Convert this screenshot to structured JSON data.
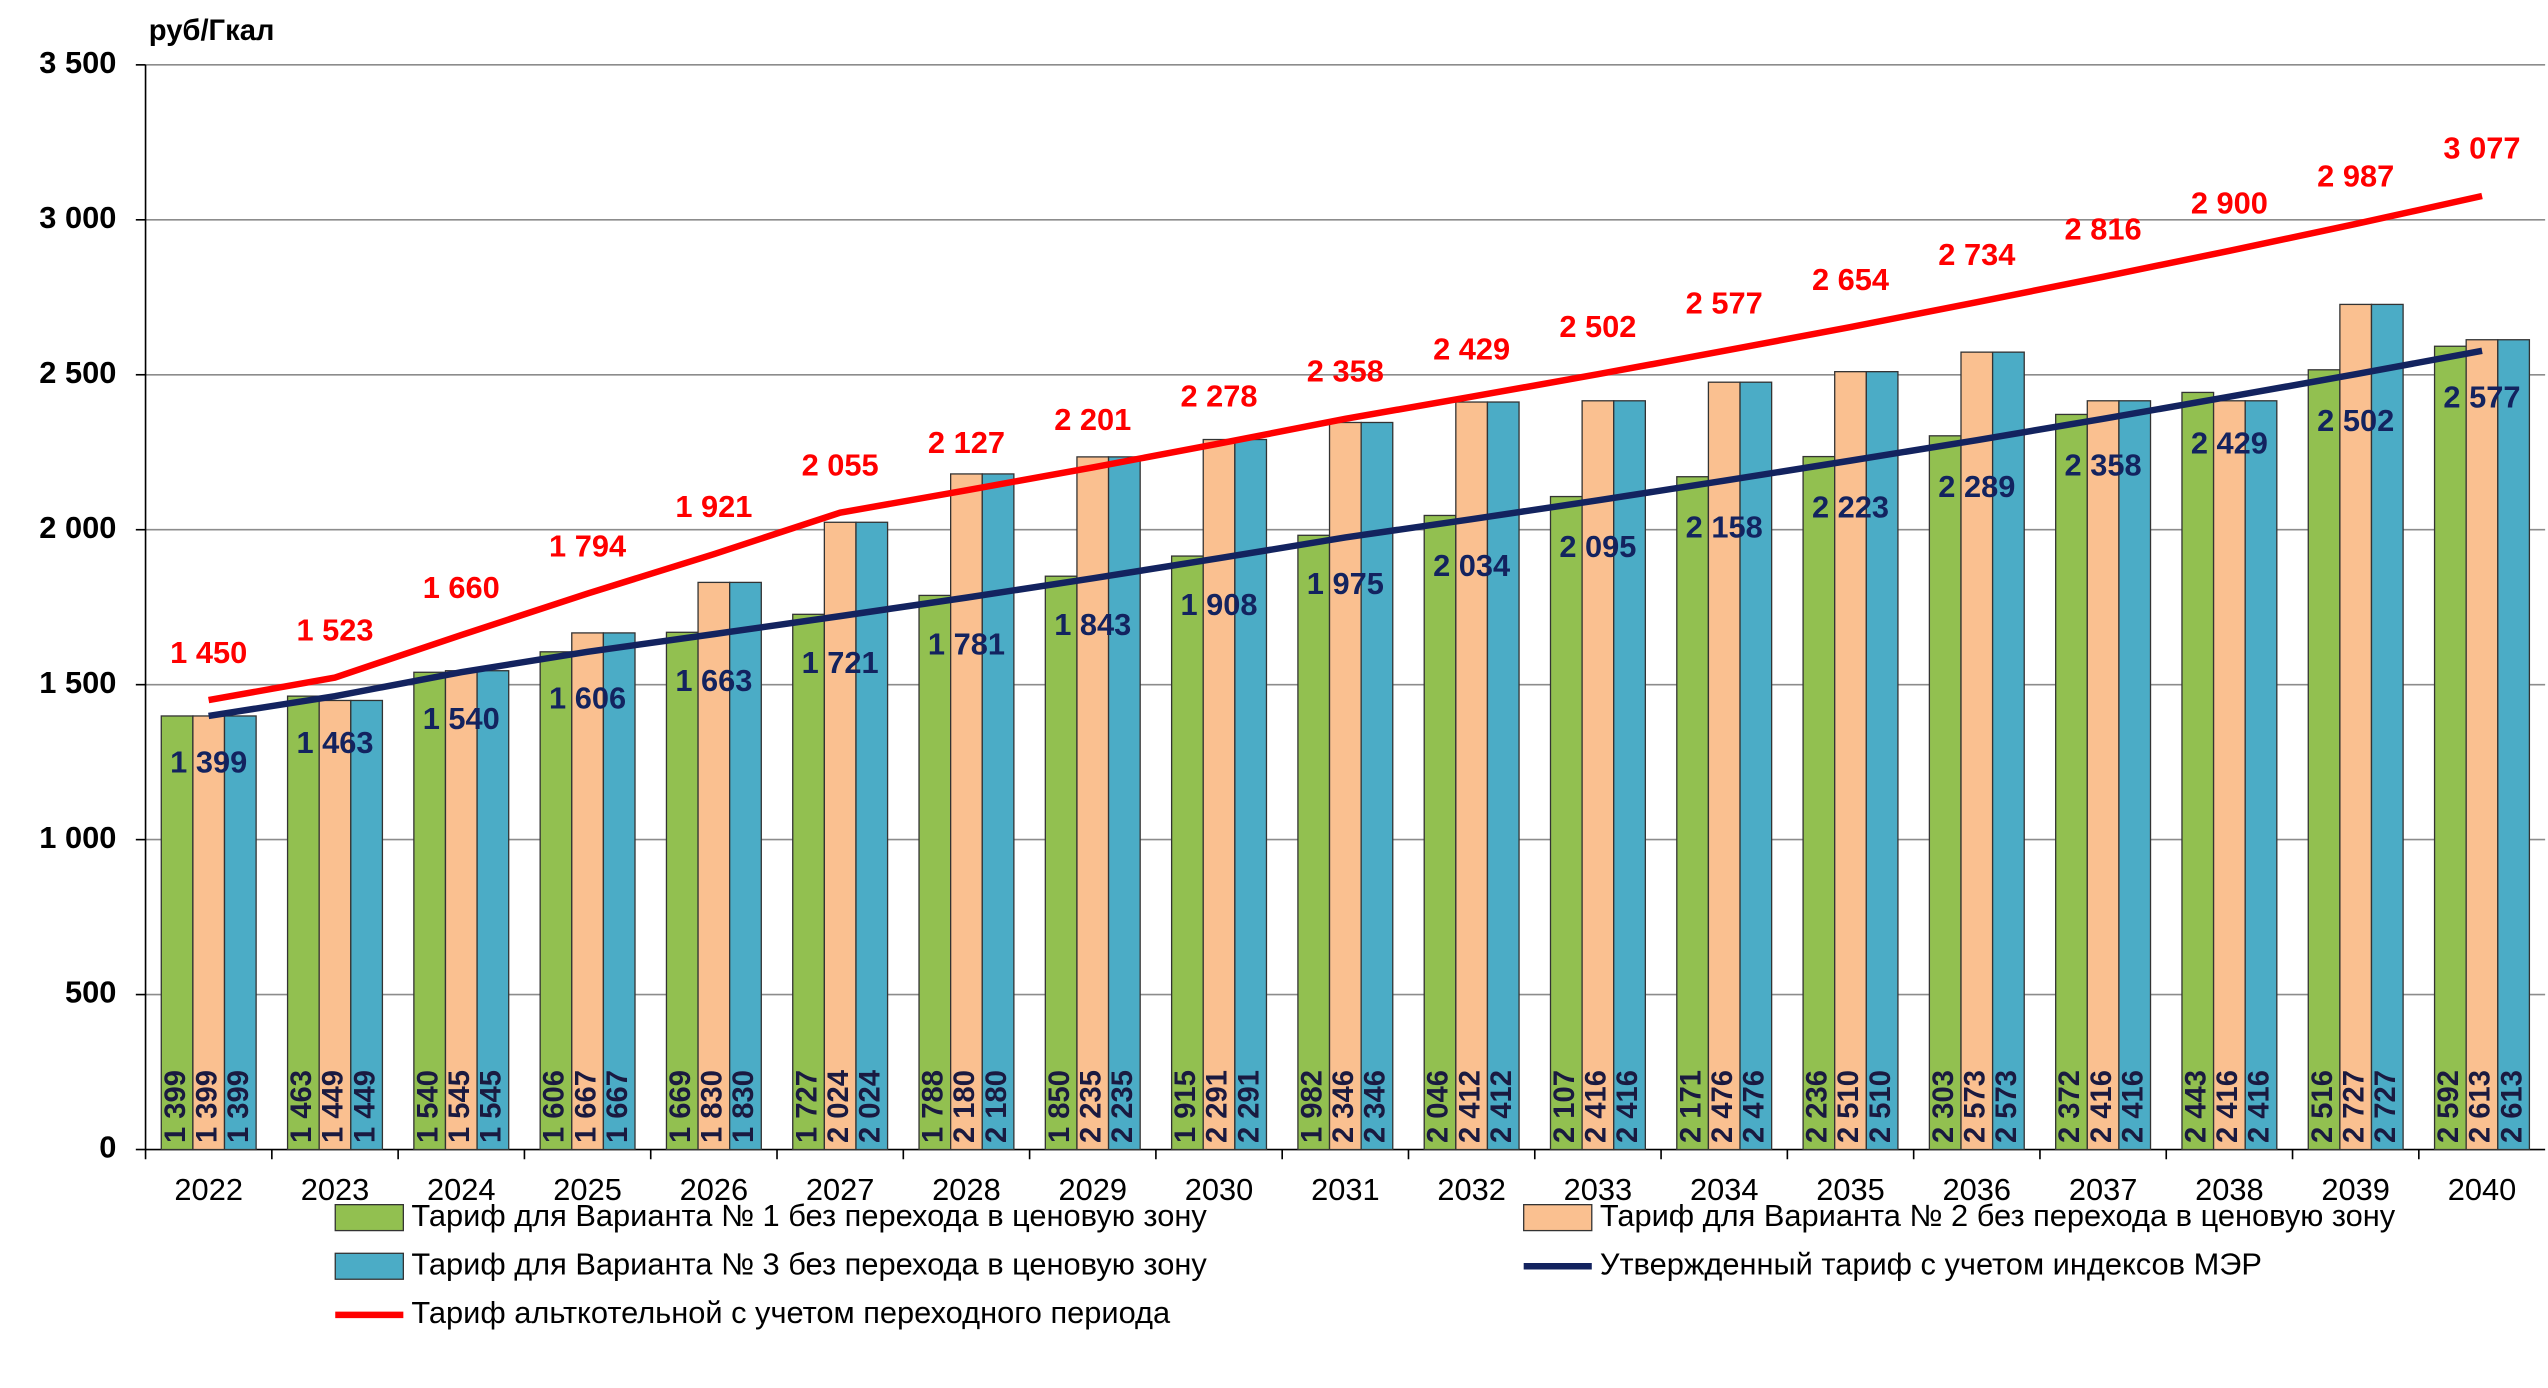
{
  "chart_data": {
    "type": "bar",
    "y_label": "руб/Гкал",
    "categories": [
      "2022",
      "2023",
      "2024",
      "2025",
      "2026",
      "2027",
      "2028",
      "2029",
      "2030",
      "2031",
      "2032",
      "2033",
      "2034",
      "2035",
      "2036",
      "2037",
      "2038",
      "2039",
      "2040"
    ],
    "ylim": [
      0,
      3500
    ],
    "yticks": [
      0,
      500,
      {
        "value": 1000,
        "label": "1 000"
      },
      {
        "value": 1500,
        "label": "1 500"
      },
      {
        "value": 2000,
        "label": "2 000"
      },
      {
        "value": 2500,
        "label": "2 500"
      },
      {
        "value": 3000,
        "label": "3 000"
      },
      {
        "value": 3500,
        "label": "3 500"
      }
    ],
    "grid": true,
    "legend": "bottom",
    "series": [
      {
        "name": "Тариф для  Варианта № 1 без перехода в ценовую зону",
        "type": "bar",
        "color": "#92c050",
        "values": [
          1399,
          1463,
          1540,
          1606,
          1669,
          1727,
          1788,
          1850,
          1915,
          1982,
          2046,
          2107,
          2171,
          2236,
          2303,
          2372,
          2443,
          2516,
          2592
        ],
        "value_labels": [
          "1 399",
          "1 463",
          "1 540",
          "1 606",
          "1 669",
          "1 727",
          "1 788",
          "1 850",
          "1 915",
          "1 982",
          "2 046",
          "2 107",
          "2 171",
          "2 236",
          "2 303",
          "2 372",
          "2 443",
          "2 516",
          "2 592"
        ]
      },
      {
        "name": "Тариф для  Варианта № 2 без перехода в ценовую зону",
        "type": "bar",
        "color": "#fac090",
        "values": [
          1399,
          1449,
          1545,
          1667,
          1830,
          2024,
          2180,
          2235,
          2291,
          2346,
          2412,
          2416,
          2476,
          2510,
          2573,
          2416,
          2416,
          2727,
          2613
        ],
        "value_labels": [
          "1 399",
          "1 449",
          "1 545",
          "1 667",
          "1 830",
          "2 024",
          "2 180",
          "2 235",
          "2 291",
          "2 346",
          "2 412",
          "2 416",
          "2 476",
          "2 510",
          "2 573",
          "2 416",
          "2 416",
          "2 727",
          "2 613"
        ]
      },
      {
        "name": "Тариф для  Варианта № 3 без перехода в ценовую зону",
        "type": "bar",
        "color": "#4bacc6",
        "values": [
          1399,
          1449,
          1545,
          1667,
          1830,
          2024,
          2180,
          2235,
          2291,
          2346,
          2412,
          2416,
          2476,
          2510,
          2573,
          2416,
          2416,
          2727,
          2613
        ],
        "value_labels": [
          "1 399",
          "1 449",
          "1 545",
          "1 667",
          "1 830",
          "2 024",
          "2 180",
          "2 235",
          "2 291",
          "2 346",
          "2 412",
          "2 416",
          "2 476",
          "2 510",
          "2 573",
          "2 416",
          "2 416",
          "2 727",
          "2 613"
        ]
      },
      {
        "name": "Утвержденный тариф с учетом индексов МЭР",
        "type": "line",
        "color": "#13235f",
        "values": [
          1399,
          1463,
          1540,
          1606,
          1663,
          1721,
          1781,
          1843,
          1908,
          1975,
          2034,
          2095,
          2158,
          2223,
          2289,
          2358,
          2429,
          2502,
          2577
        ],
        "value_labels": [
          "1 399",
          "1 463",
          "1 540",
          "1 606",
          "1 663",
          "1 721",
          "1 781",
          "1 843",
          "1 908",
          "1 975",
          "2 034",
          "2 095",
          "2 158",
          "2 223",
          "2 289",
          "2 358",
          "2 429",
          "2 502",
          "2 577"
        ]
      },
      {
        "name": "Тариф альткотельной с учетом переходного периода",
        "type": "line",
        "color": "#ff0000",
        "values": [
          1450,
          1523,
          1660,
          1794,
          1921,
          2055,
          2127,
          2201,
          2278,
          2358,
          2429,
          2502,
          2577,
          2654,
          2734,
          2816,
          2900,
          2987,
          3077
        ],
        "value_labels": [
          "1 450",
          "1 523",
          "1 660",
          "1 794",
          "1 921",
          "2 055",
          "2 127",
          "2 201",
          "2 278",
          "2 358",
          "2 429",
          "2 502",
          "2 577",
          "2 654",
          "2 734",
          "2 816",
          "2 900",
          "2 987",
          "3 077"
        ]
      }
    ]
  }
}
